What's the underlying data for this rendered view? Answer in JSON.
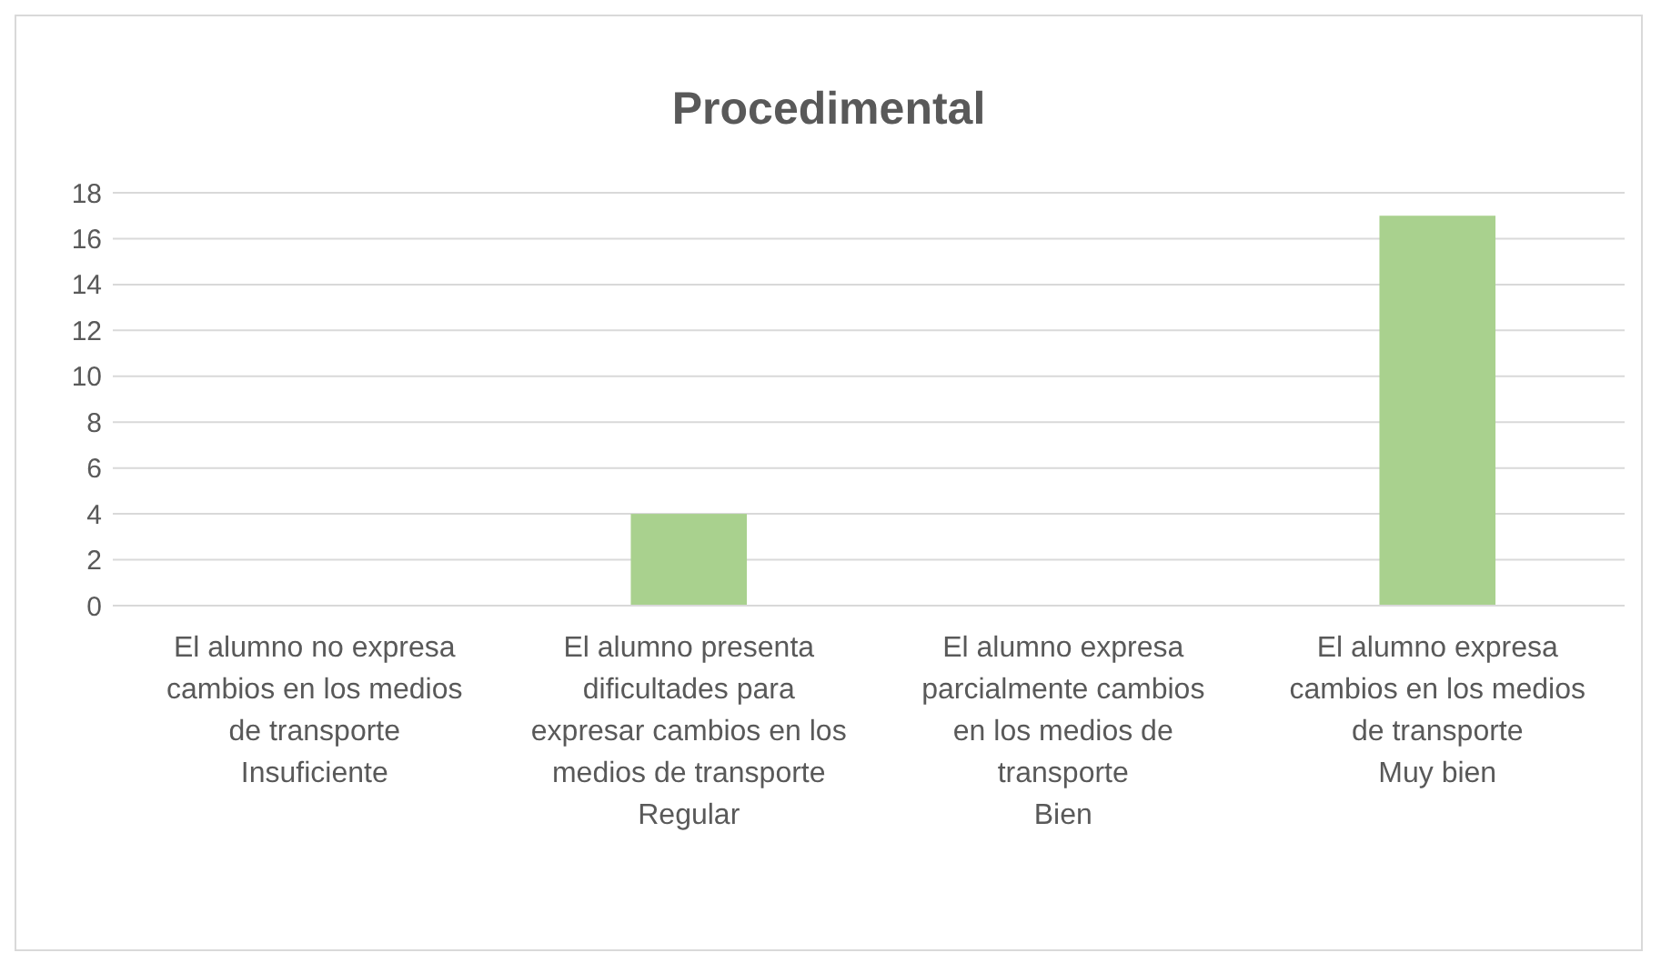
{
  "chart_data": {
    "type": "bar",
    "title": "Procedimental",
    "categories": [
      "El alumno no expresa cambios en los medios de transporte\nInsuficiente",
      "El alumno presenta dificultades para expresar cambios en los medios de transporte\nRegular",
      "El alumno expresa parcialmente cambios en los medios de transporte\nBien",
      "El alumno expresa cambios en los medios de transporte\nMuy bien"
    ],
    "values": [
      0,
      4,
      0,
      17
    ],
    "color": "#a9d18e",
    "ylim": [
      0,
      18
    ],
    "yticks": [
      0,
      2,
      4,
      6,
      8,
      10,
      12,
      14,
      16,
      18
    ],
    "grid": "y"
  }
}
